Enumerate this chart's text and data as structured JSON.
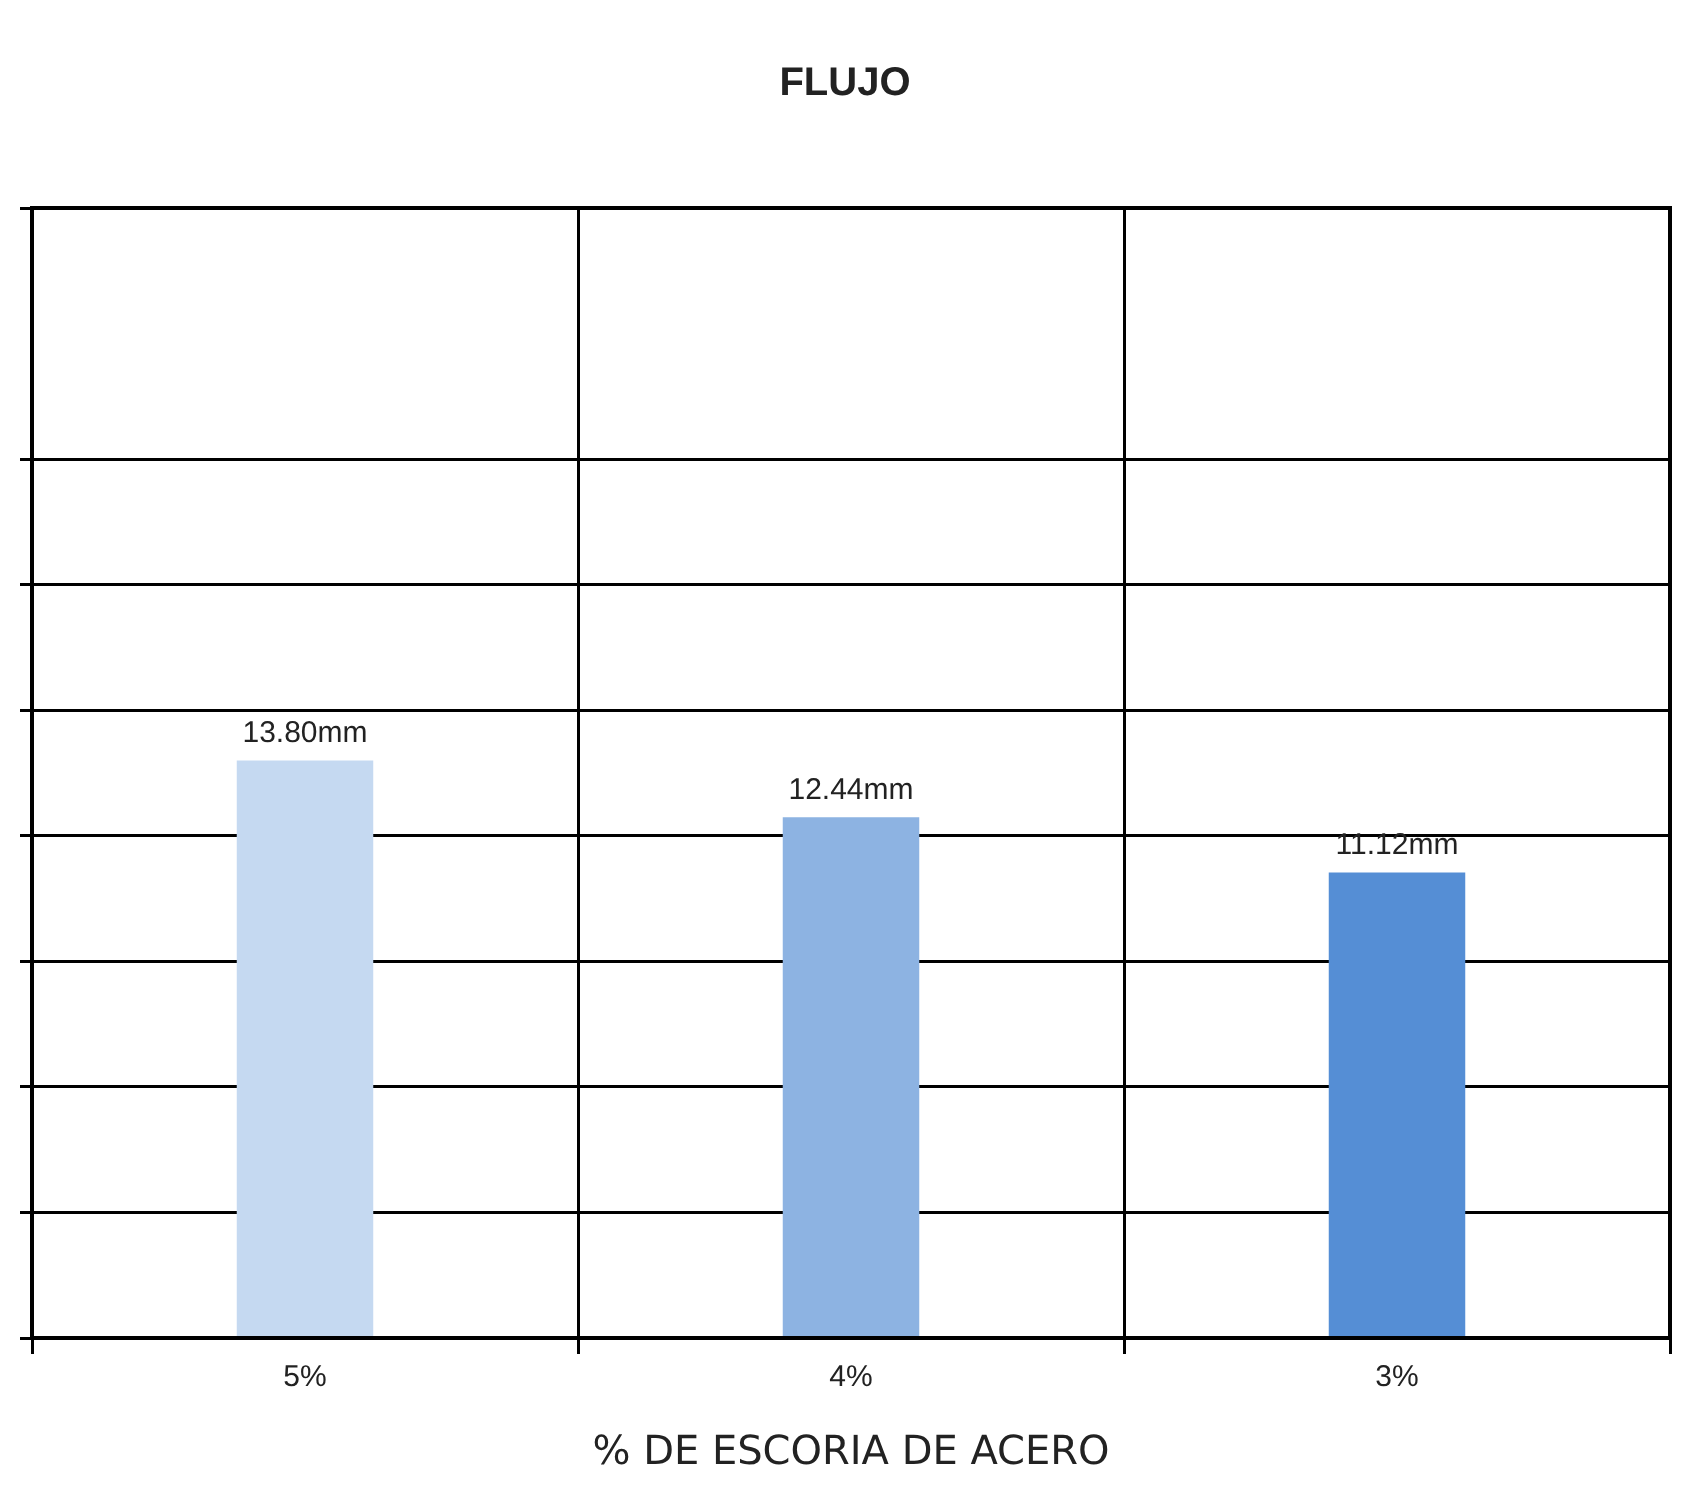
{
  "chart_data": {
    "type": "bar",
    "title": "FLUJO",
    "xlabel": "% DE ESCORIA DE ACERO",
    "categories": [
      "5%",
      "4%",
      "3%"
    ],
    "values": [
      13.8,
      12.44,
      11.12
    ],
    "colors": [
      "#c5d9f1",
      "#8db3e2",
      "#558ed5"
    ],
    "value_labels": [
      "13.80mm",
      "12.44mm",
      "11.12mm"
    ],
    "ylim": [
      0,
      27
    ],
    "yticks": [
      {
        "value": 0,
        "label": null
      },
      {
        "value": 3,
        "label": null
      },
      {
        "value": 6,
        "label": null
      },
      {
        "value": 9,
        "label": null
      },
      {
        "value": 12,
        "label": null
      },
      {
        "value": 15,
        "label": null
      },
      {
        "value": 18,
        "label": null
      },
      {
        "value": 21,
        "label": null
      },
      {
        "value": 27,
        "label": null
      }
    ],
    "grid": true,
    "tick_labels": "x"
  }
}
